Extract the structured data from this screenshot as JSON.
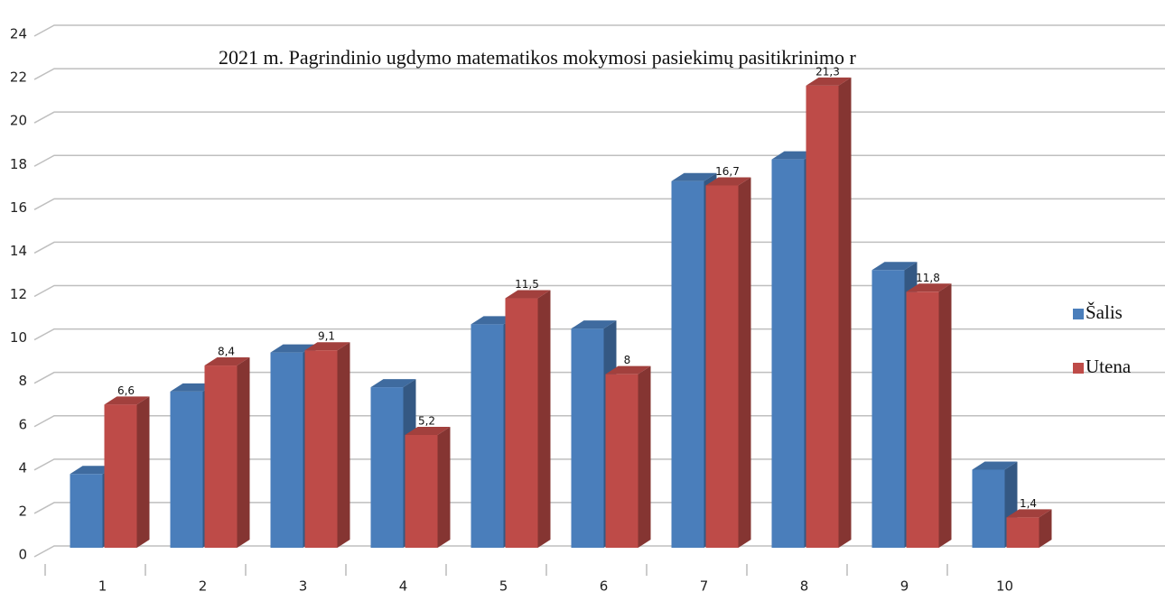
{
  "chart_data": {
    "type": "bar3d",
    "title": "2021 m. Pagrindinio ugdymo matematikos  mokymosi pasiekimų pasitikrinimo  r",
    "categories": [
      "1",
      "2",
      "3",
      "4",
      "5",
      "6",
      "7",
      "8",
      "9",
      "10"
    ],
    "series": [
      {
        "name": "Šalis",
        "color": "#4a7ebb",
        "values": [
          3.4,
          7.2,
          9.0,
          7.4,
          10.3,
          10.1,
          16.9,
          17.9,
          12.8,
          3.6
        ]
      },
      {
        "name": "Utena",
        "color": "#be4b48",
        "values": [
          6.6,
          8.4,
          9.1,
          5.2,
          11.5,
          8,
          16.7,
          21.3,
          11.8,
          1.4
        ],
        "value_labels": [
          "6,6",
          "8,4",
          "9,1",
          "5,2",
          "11,5",
          "8",
          "16,7",
          "21,3",
          "11,8",
          "1,4"
        ]
      }
    ],
    "ylim": [
      0,
      24
    ],
    "yticks": [
      0,
      2,
      4,
      6,
      8,
      10,
      12,
      14,
      16,
      18,
      20,
      22,
      24
    ],
    "grid": true,
    "legend": "right"
  }
}
